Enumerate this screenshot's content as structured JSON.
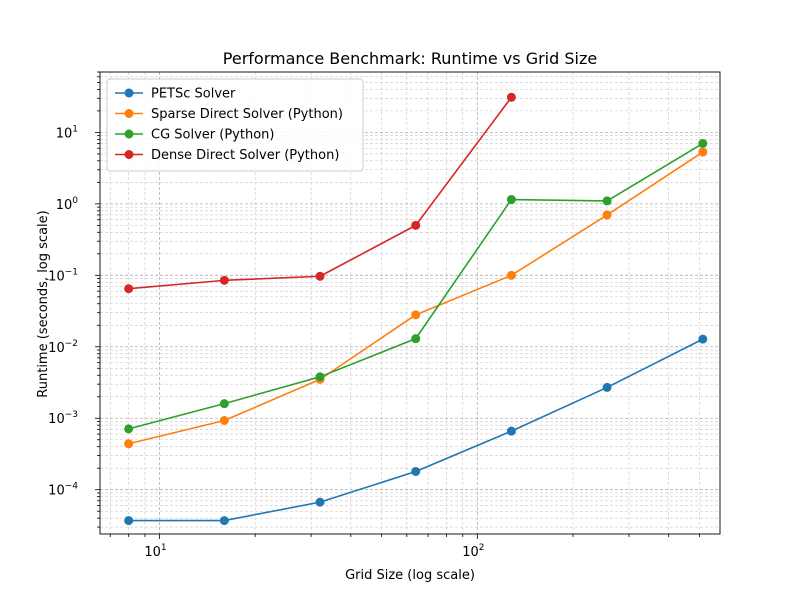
{
  "chart_data": {
    "type": "line",
    "title": "Performance Benchmark: Runtime vs Grid Size",
    "xlabel": "Grid Size (log scale)",
    "ylabel": "Runtime (seconds, log scale)",
    "x_scale": "log",
    "y_scale": "log",
    "xlim": [
      6.5,
      580
    ],
    "ylim": [
      2.4e-05,
      70
    ],
    "grid": "on (major and minor, dashed)",
    "legend_position": "top-left",
    "x_ticks": [
      {
        "value": 10,
        "base": "10",
        "exp": "1"
      },
      {
        "value": 100,
        "base": "10",
        "exp": "2"
      }
    ],
    "y_ticks": [
      {
        "value": 0.0001,
        "base": "10",
        "exp": "−4"
      },
      {
        "value": 0.001,
        "base": "10",
        "exp": "−3"
      },
      {
        "value": 0.01,
        "base": "10",
        "exp": "−2"
      },
      {
        "value": 0.1,
        "base": "10",
        "exp": "−1"
      },
      {
        "value": 1,
        "base": "10",
        "exp": "0"
      },
      {
        "value": 10,
        "base": "10",
        "exp": "1"
      }
    ],
    "series": [
      {
        "name": "PETSc Solver",
        "color": "#1f77b4",
        "x": [
          8,
          16,
          32,
          64,
          128,
          256,
          512
        ],
        "y": [
          3.7e-05,
          3.7e-05,
          6.7e-05,
          0.00018,
          0.00066,
          0.0027,
          0.0128
        ]
      },
      {
        "name": "Sparse Direct Solver (Python)",
        "color": "#ff7f0e",
        "x": [
          8,
          16,
          32,
          64,
          128,
          256,
          512
        ],
        "y": [
          0.00044,
          0.00093,
          0.0035,
          0.028,
          0.1,
          0.7,
          5.3
        ]
      },
      {
        "name": "CG Solver (Python)",
        "color": "#2ca02c",
        "x": [
          8,
          16,
          32,
          64,
          128,
          256,
          512
        ],
        "y": [
          0.00071,
          0.0016,
          0.0038,
          0.013,
          1.15,
          1.1,
          7.0
        ]
      },
      {
        "name": "Dense Direct Solver (Python)",
        "color": "#d62728",
        "x": [
          8,
          16,
          32,
          64,
          128
        ],
        "y": [
          0.065,
          0.085,
          0.097,
          0.5,
          31
        ]
      }
    ]
  }
}
